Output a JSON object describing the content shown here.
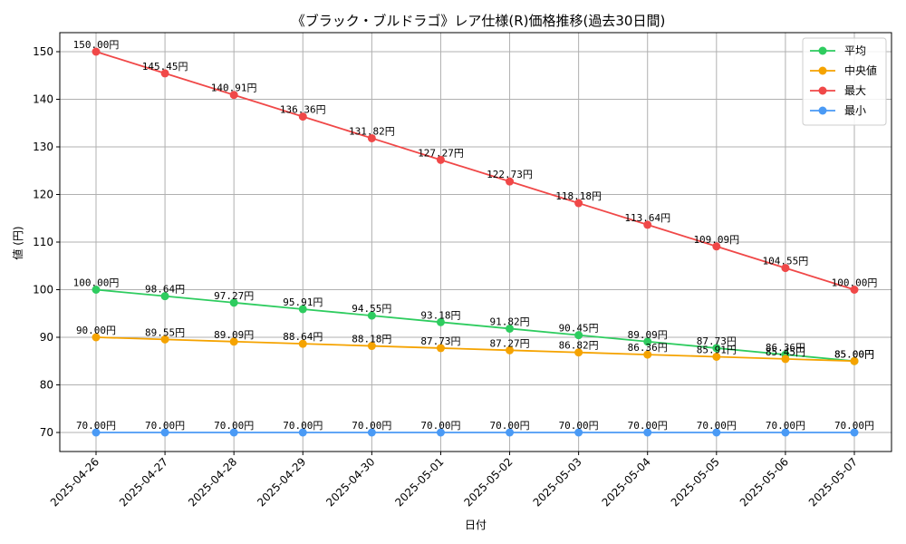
{
  "chart_data": {
    "type": "line",
    "title": "《ブラック・ブルドラゴ》レア仕様(R)価格推移(過去30日間)",
    "xlabel": "日付",
    "ylabel": "値 (円)",
    "categories": [
      "2025-04-26",
      "2025-04-27",
      "2025-04-28",
      "2025-04-29",
      "2025-04-30",
      "2025-05-01",
      "2025-05-02",
      "2025-05-03",
      "2025-05-04",
      "2025-05-05",
      "2025-05-06",
      "2025-05-07"
    ],
    "ylim": [
      66,
      154
    ],
    "yticks": [
      70,
      80,
      90,
      100,
      110,
      120,
      130,
      140,
      150
    ],
    "grid": true,
    "legend_position": "top-right",
    "value_suffix": "円",
    "series": [
      {
        "name": "平均",
        "color": "#2ecc5f",
        "values": [
          100.0,
          98.64,
          97.27,
          95.91,
          94.55,
          93.18,
          91.82,
          90.45,
          89.09,
          87.73,
          86.36,
          85.0
        ]
      },
      {
        "name": "中央値",
        "color": "#f5a300",
        "values": [
          90.0,
          89.55,
          89.09,
          88.64,
          88.18,
          87.73,
          87.27,
          86.82,
          86.36,
          85.91,
          85.45,
          85.0
        ]
      },
      {
        "name": "最大",
        "color": "#f04848",
        "values": [
          150.0,
          145.45,
          140.91,
          136.36,
          131.82,
          127.27,
          122.73,
          118.18,
          113.64,
          109.09,
          104.55,
          100.0
        ]
      },
      {
        "name": "最小",
        "color": "#4a9af5",
        "values": [
          70.0,
          70.0,
          70.0,
          70.0,
          70.0,
          70.0,
          70.0,
          70.0,
          70.0,
          70.0,
          70.0,
          70.0
        ]
      }
    ]
  }
}
